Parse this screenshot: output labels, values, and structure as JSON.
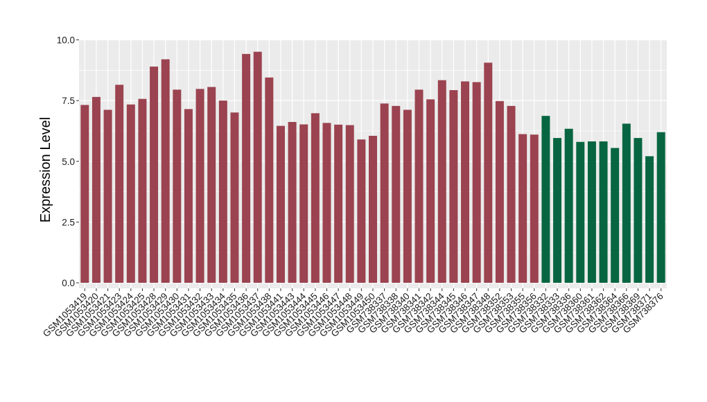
{
  "chart_data": {
    "type": "bar",
    "title": "",
    "xlabel": "",
    "ylabel": "Expression Level",
    "ylim": [
      0,
      10
    ],
    "yticks": [
      0,
      2.5,
      5,
      7.5,
      10
    ],
    "ytick_labels": [
      "0.0",
      "2.5",
      "5.0",
      "7.5",
      "10.0"
    ],
    "grid": true,
    "legend": "none",
    "colors": {
      "group1": "#9b4350",
      "group2": "#076641",
      "panel": "#ebebeb",
      "grid": "#ffffff"
    },
    "categories": [
      "GSM1053419",
      "GSM1053420",
      "GSM1053421",
      "GSM1053423",
      "GSM1053424",
      "GSM1053425",
      "GSM1053428",
      "GSM1053429",
      "GSM1053430",
      "GSM1053431",
      "GSM1053432",
      "GSM1053433",
      "GSM1053434",
      "GSM1053435",
      "GSM1053436",
      "GSM1053437",
      "GSM1053438",
      "GSM1053441",
      "GSM1053443",
      "GSM1053444",
      "GSM1053445",
      "GSM1053446",
      "GSM1053447",
      "GSM1053448",
      "GSM1053449",
      "GSM1053450",
      "GSM738337",
      "GSM738338",
      "GSM738340",
      "GSM738341",
      "GSM738342",
      "GSM738344",
      "GSM738345",
      "GSM738346",
      "GSM738347",
      "GSM738348",
      "GSM738352",
      "GSM738353",
      "GSM738355",
      "GSM738356",
      "GSM738332",
      "GSM738333",
      "GSM738336",
      "GSM738360",
      "GSM738361",
      "GSM738362",
      "GSM738364",
      "GSM738366",
      "GSM738369",
      "GSM738371",
      "GSM738376"
    ],
    "values": [
      7.32,
      7.65,
      7.12,
      8.15,
      7.34,
      7.57,
      8.9,
      9.2,
      7.95,
      7.15,
      7.98,
      8.06,
      7.5,
      7.01,
      9.42,
      9.51,
      8.45,
      6.46,
      6.62,
      6.52,
      6.98,
      6.58,
      6.51,
      6.49,
      5.9,
      6.05,
      7.38,
      7.28,
      7.12,
      7.95,
      7.55,
      8.34,
      7.93,
      8.29,
      8.26,
      9.06,
      7.48,
      7.28,
      6.12,
      6.1,
      6.87,
      5.96,
      6.34,
      5.8,
      5.82,
      5.82,
      5.55,
      6.55,
      5.96,
      5.21,
      6.2
    ],
    "groups": [
      1,
      1,
      1,
      1,
      1,
      1,
      1,
      1,
      1,
      1,
      1,
      1,
      1,
      1,
      1,
      1,
      1,
      1,
      1,
      1,
      1,
      1,
      1,
      1,
      1,
      1,
      1,
      1,
      1,
      1,
      1,
      1,
      1,
      1,
      1,
      1,
      1,
      1,
      1,
      1,
      2,
      2,
      2,
      2,
      2,
      2,
      2,
      2,
      2,
      2,
      2
    ]
  }
}
